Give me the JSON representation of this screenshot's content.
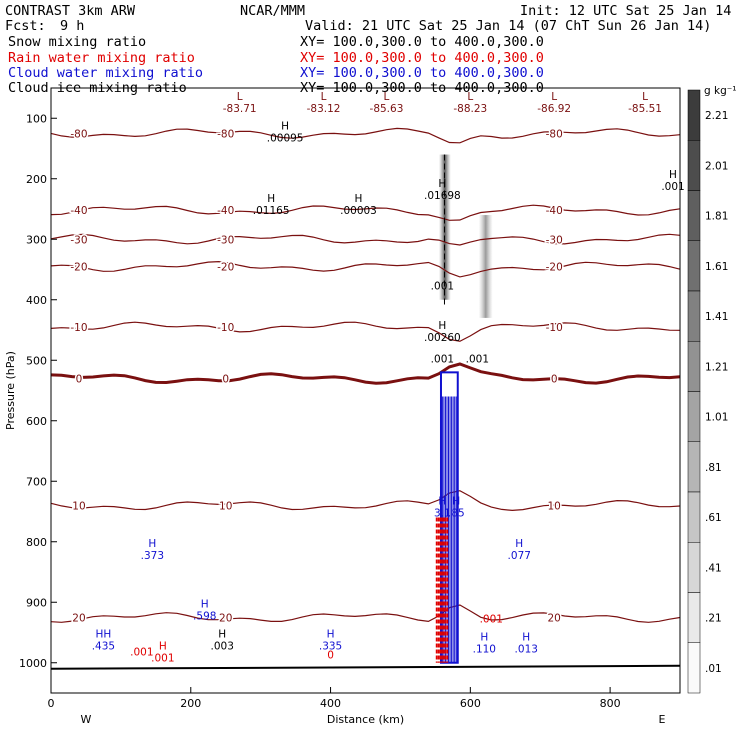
{
  "header": {
    "model": "CONTRAST  3km ARW",
    "center": "NCAR/MMM",
    "init": "Init: 12 UTC Sat 25 Jan 14",
    "fcst_label": "Fcst:",
    "fcst_value": "9 h",
    "valid": "Valid: 21 UTC Sat 25 Jan 14 (07 ChT Sun 26 Jan 14)",
    "fields": [
      {
        "name": "Snow mixing ratio",
        "xy": "XY= 100.0,300.0 to 400.0,300.0",
        "color": "#000000"
      },
      {
        "name": "Rain water mixing ratio",
        "xy": "XY= 100.0,300.0 to 400.0,300.0",
        "color": "#e00000"
      },
      {
        "name": "Cloud water mixing ratio",
        "xy": "XY= 100.0,300.0 to 400.0,300.0",
        "color": "#1010d0"
      },
      {
        "name": "Cloud ice mixing ratio",
        "xy": "XY= 100.0,300.0 to 400.0,300.0",
        "color": "#000000"
      }
    ]
  },
  "colorbar": {
    "unit": "g kg⁻¹",
    "labels": [
      "2.21",
      "2.01",
      "1.81",
      "1.61",
      "1.41",
      "1.21",
      "1.01",
      ".81",
      ".61",
      ".41",
      ".21",
      ".01"
    ]
  },
  "chart_data": {
    "type": "contour-cross-section",
    "xlabel": "Distance (km)",
    "ylabel": "Pressure (hPa)",
    "xlim": [
      0,
      900
    ],
    "ylim": [
      1050,
      50
    ],
    "x_ticks": [
      "0",
      "200",
      "400",
      "600",
      "800"
    ],
    "y_ticks": [
      "100",
      "200",
      "300",
      "400",
      "500",
      "600",
      "700",
      "800",
      "900",
      "1000"
    ],
    "x_ends": {
      "left": "W",
      "right": "E"
    },
    "temperature_contours": [
      {
        "label": "-80",
        "p": 125
      },
      {
        "label": "-40",
        "p": 252
      },
      {
        "label": "-30",
        "p": 300
      },
      {
        "label": "-20",
        "p": 345
      },
      {
        "label": "-10",
        "p": 445
      },
      {
        "label": "0",
        "p": 530
      },
      {
        "label": "10",
        "p": 740
      },
      {
        "label": "20",
        "p": 925
      }
    ],
    "low_centers": [
      {
        "label": "L",
        "value": "-83.71",
        "x": 270
      },
      {
        "label": "L",
        "value": "-83.12",
        "x": 390
      },
      {
        "label": "L",
        "value": "-85.63",
        "x": 480
      },
      {
        "label": "L",
        "value": "-88.23",
        "x": 600
      },
      {
        "label": "L",
        "value": "-86.92",
        "x": 720
      },
      {
        "label": "L",
        "value": "-85.51",
        "x": 850
      }
    ],
    "max_labels": [
      {
        "label": "H",
        "value": ".00095",
        "x": 335,
        "p": 135
      },
      {
        "label": "H",
        "value": ".01165",
        "x": 315,
        "p": 255
      },
      {
        "label": "H",
        "value": ".00003",
        "x": 440,
        "p": 255
      },
      {
        "label": "H",
        "value": ".01698",
        "x": 560,
        "p": 230
      },
      {
        "label": "H",
        "value": ".001",
        "x": 890,
        "p": 215
      },
      {
        "label": "",
        "value": ".001",
        "x": 560,
        "p": 380
      },
      {
        "label": "H",
        "value": ".00260",
        "x": 560,
        "p": 465
      },
      {
        "label": "",
        "value": ".001",
        "x": 560,
        "p": 500
      },
      {
        "label": "",
        "value": ".001",
        "x": 610,
        "p": 500
      },
      {
        "label": "H",
        "value": "3.1",
        "x": 560,
        "p": 755
      },
      {
        "label": "H",
        "value": ".85",
        "x": 580,
        "p": 755
      },
      {
        "label": "H",
        "value": ".373",
        "x": 145,
        "p": 825
      },
      {
        "label": "H",
        "value": ".077",
        "x": 670,
        "p": 825
      },
      {
        "label": "H",
        "value": ".598",
        "x": 220,
        "p": 925
      },
      {
        "label": "H",
        "value": ".003",
        "x": 245,
        "p": 975
      },
      {
        "label": "HH",
        "value": ".435",
        "x": 75,
        "p": 975
      },
      {
        "label": "",
        "value": ".001",
        "x": 130,
        "p": 985
      },
      {
        "label": "H",
        "value": ".335",
        "x": 400,
        "p": 975
      },
      {
        "label": "H",
        "value": ".110",
        "x": 620,
        "p": 980
      },
      {
        "label": "H",
        "value": ".013",
        "x": 680,
        "p": 980
      },
      {
        "label": "H",
        "value": ".001",
        "x": 160,
        "p": 995
      },
      {
        "label": "",
        "value": ".001",
        "x": 630,
        "p": 930
      },
      {
        "label": "",
        "value": "0",
        "x": 400,
        "p": 990
      }
    ]
  }
}
